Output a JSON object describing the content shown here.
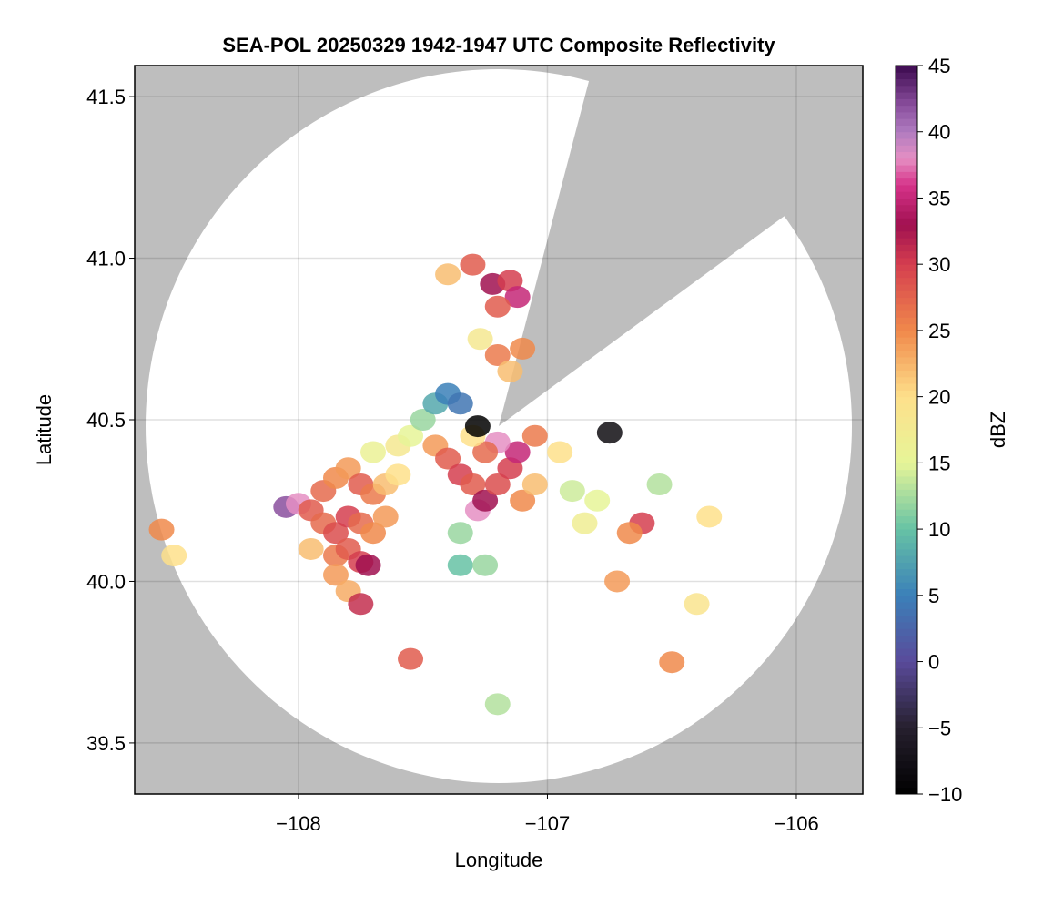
{
  "chart_data": {
    "type": "scatter",
    "title": "SEA-POL 20250329 1942-1947 UTC Composite Reflectivity",
    "x_label": "Longitude",
    "y_label": "Latitude",
    "colorbar_label": "dBZ",
    "xlim": [
      -108.658,
      -105.733
    ],
    "ylim": [
      39.342,
      41.596
    ],
    "xticks": [
      {
        "value": -108,
        "label": "−108"
      },
      {
        "value": -107,
        "label": "−107"
      },
      {
        "value": -106,
        "label": "−106"
      }
    ],
    "yticks": [
      39.5,
      {
        "value": 40,
        "label": "40.0"
      },
      40.5,
      {
        "value": 41,
        "label": "41.0"
      },
      41.5
    ],
    "grid": true,
    "clim": [
      -10,
      45
    ],
    "cticks": [
      {
        "value": -10,
        "label": "−10"
      },
      {
        "value": -5,
        "label": "−5"
      },
      0,
      5,
      10,
      15,
      20,
      25,
      30,
      35,
      40,
      45
    ],
    "colormap": [
      [
        -10,
        "#000000"
      ],
      [
        -5,
        "#26202e"
      ],
      [
        0,
        "#5a4a9a"
      ],
      [
        5,
        "#3b80b9"
      ],
      [
        10,
        "#66c2a5"
      ],
      [
        15,
        "#e6f598"
      ],
      [
        20,
        "#fee08b"
      ],
      [
        25,
        "#f0894b"
      ],
      [
        30,
        "#d53e4f"
      ],
      [
        33,
        "#a01050"
      ],
      [
        36,
        "#d6338a"
      ],
      [
        38,
        "#e58fc3"
      ],
      [
        40,
        "#b07cc0"
      ],
      [
        42,
        "#8a4f9e"
      ],
      [
        45,
        "#3d0a4f"
      ]
    ],
    "x": [
      -108.05,
      -108.0,
      -107.95,
      -107.9,
      -107.85,
      -107.8,
      -107.75,
      -107.7,
      -107.65,
      -107.6,
      -107.9,
      -107.85,
      -107.8,
      -107.75,
      -107.7,
      -107.65,
      -107.85,
      -107.8,
      -107.75,
      -107.72,
      -107.85,
      -107.8,
      -107.75,
      -107.95,
      -107.6,
      -107.7,
      -107.55,
      -107.5,
      -107.45,
      -107.4,
      -107.35,
      -107.45,
      -107.4,
      -107.35,
      -107.3,
      -107.28,
      -107.25,
      -107.2,
      -107.15,
      -107.12,
      -107.2,
      -107.25,
      -107.1,
      -107.05,
      -107.3,
      -107.05,
      -106.95,
      -107.35,
      -107.35,
      -107.25,
      -107.4,
      -107.3,
      -107.22,
      -107.15,
      -107.12,
      -107.2,
      -107.27,
      -107.2,
      -107.15,
      -107.1,
      -106.9,
      -106.8,
      -106.85,
      -106.62,
      -106.67,
      -106.55,
      -106.35,
      -106.72,
      -108.55,
      -108.5,
      -107.55,
      -106.5,
      -107.2,
      -106.4,
      -106.75,
      -107.28
    ],
    "y": [
      40.23,
      40.24,
      40.22,
      40.28,
      40.32,
      40.35,
      40.3,
      40.27,
      40.3,
      40.33,
      40.18,
      40.15,
      40.2,
      40.18,
      40.15,
      40.2,
      40.08,
      40.1,
      40.06,
      40.05,
      40.02,
      39.97,
      39.93,
      40.1,
      40.42,
      40.4,
      40.45,
      40.5,
      40.55,
      40.58,
      40.55,
      40.42,
      40.38,
      40.33,
      40.3,
      40.22,
      40.25,
      40.3,
      40.35,
      40.4,
      40.43,
      40.4,
      40.25,
      40.3,
      40.45,
      40.45,
      40.4,
      40.15,
      40.05,
      40.05,
      40.95,
      40.98,
      40.92,
      40.93,
      40.88,
      40.85,
      40.75,
      40.7,
      40.65,
      40.72,
      40.28,
      40.25,
      40.18,
      40.18,
      40.15,
      40.3,
      40.2,
      40.0,
      40.16,
      40.08,
      39.76,
      39.75,
      39.62,
      39.93,
      40.46,
      40.48
    ],
    "values": [
      42,
      38,
      28,
      27,
      25,
      24,
      28,
      26,
      22,
      20,
      27,
      29,
      30,
      27,
      25,
      24,
      26,
      28,
      30,
      33,
      24,
      23,
      31,
      22,
      18,
      16,
      15,
      12,
      8,
      5,
      4,
      24,
      28,
      30,
      28,
      38,
      33,
      29,
      30,
      35,
      38,
      27,
      25,
      22,
      20,
      26,
      20,
      12,
      10,
      12,
      22,
      28,
      33,
      30,
      35,
      28,
      18,
      26,
      22,
      25,
      14,
      15,
      17,
      30,
      25,
      13,
      20,
      24,
      25,
      20,
      28,
      25,
      13,
      19,
      -8,
      -10
    ]
  }
}
